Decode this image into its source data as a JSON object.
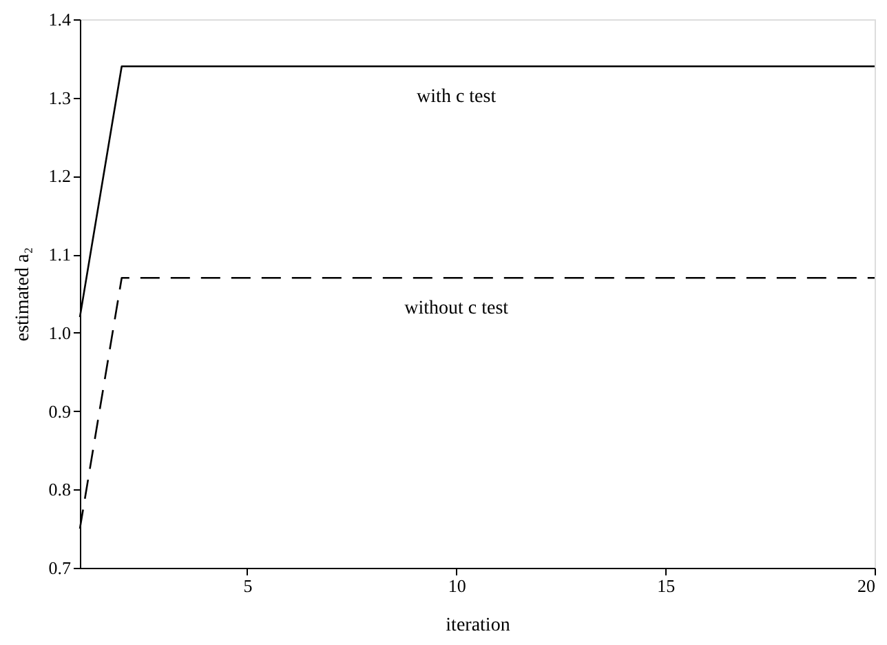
{
  "chart_data": {
    "type": "line",
    "xlabel": "iteration",
    "ylabel": "estimated a₂",
    "x": [
      1,
      2,
      3,
      4,
      5,
      6,
      7,
      8,
      9,
      10,
      11,
      12,
      13,
      14,
      15,
      16,
      17,
      18,
      19,
      20
    ],
    "series": [
      {
        "name": "with c test",
        "color": "#000000",
        "line_style": "solid",
        "values": [
          1.02,
          1.34,
          1.34,
          1.34,
          1.34,
          1.34,
          1.34,
          1.34,
          1.34,
          1.34,
          1.34,
          1.34,
          1.34,
          1.34,
          1.34,
          1.34,
          1.34,
          1.34,
          1.34,
          1.34
        ]
      },
      {
        "name": "without c test",
        "color": "#000000",
        "line_style": "dashed",
        "values": [
          0.75,
          1.07,
          1.07,
          1.07,
          1.07,
          1.07,
          1.07,
          1.07,
          1.07,
          1.07,
          1.07,
          1.07,
          1.07,
          1.07,
          1.07,
          1.07,
          1.07,
          1.07,
          1.07,
          1.07
        ]
      }
    ],
    "xlim": [
      1,
      20
    ],
    "xticks": [
      5,
      10,
      15,
      20
    ],
    "ylim": [
      0.7,
      1.4
    ],
    "yticks": [
      0.7,
      0.8,
      0.9,
      {
        "value": 1.0,
        "label": "1.0"
      },
      1.1,
      1.2,
      1.3,
      1.4
    ],
    "grid": false,
    "legend": false,
    "marker": "none"
  }
}
